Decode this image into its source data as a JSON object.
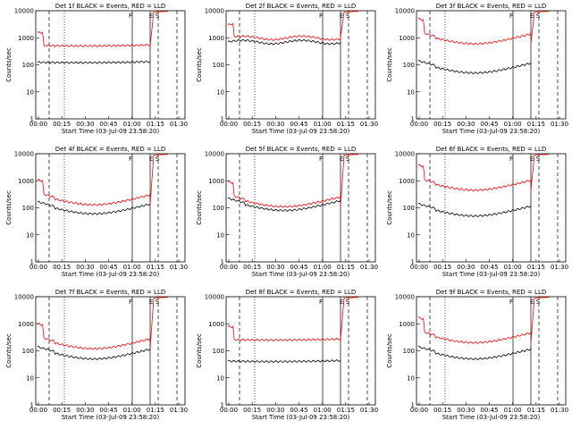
{
  "xlabel": "Start Time (03-Jul-09 23:58:20)",
  "ylabel": "Counts/sec",
  "xticks": [
    "00:00",
    "00:15",
    "00:30",
    "00:45",
    "01:00",
    "01:15",
    "01:30"
  ],
  "yticks": [
    "1",
    "10",
    "100",
    "1000",
    "10000"
  ],
  "colors": {
    "events": "#000000",
    "lld": "#ff0000",
    "axes": "#000000"
  },
  "panels": [
    {
      "title": "Det 1f BLACK = Events, RED = LLD",
      "markers": [
        "F",
        "E",
        "S"
      ],
      "events": 120,
      "lld": 500,
      "shape": "flat"
    },
    {
      "title": "Det 2f BLACK = Events, RED = LLD",
      "markers": [
        "F",
        "E",
        "S"
      ],
      "events": 700,
      "lld": 1000,
      "shape": "flat-high"
    },
    {
      "title": "Det 3f BLACK = Events, RED = LLD",
      "markers": [
        "F",
        "E",
        "S"
      ],
      "events": 50,
      "lld": 600,
      "shape": "dip"
    },
    {
      "title": "Det 4f BLACK = Events, RED = LLD",
      "markers": [
        "F",
        "E",
        "S"
      ],
      "events": 60,
      "lld": 130,
      "shape": "dip"
    },
    {
      "title": "Det 5f BLACK = Events, RED = LLD",
      "markers": [
        "F",
        "E",
        "S"
      ],
      "events": 80,
      "lld": 110,
      "shape": "dip"
    },
    {
      "title": "Det 6f BLACK = Events, RED = LLD",
      "markers": [
        "F",
        "E",
        "S"
      ],
      "events": 50,
      "lld": 450,
      "shape": "dip"
    },
    {
      "title": "Det 7f BLACK = Events, RED = LLD",
      "markers": [
        "F",
        "E",
        "S"
      ],
      "events": 50,
      "lld": 120,
      "shape": "dip"
    },
    {
      "title": "Det 8f BLACK = Events, RED = LLD",
      "markers": [
        "F",
        "E",
        "S"
      ],
      "events": 40,
      "lld": 250,
      "shape": "flat"
    },
    {
      "title": "Det 9f BLACK = Events, RED = LLD",
      "markers": [
        "F",
        "E",
        "S"
      ],
      "events": 50,
      "lld": 200,
      "shape": "dip"
    }
  ],
  "chart_data": {
    "type": "line",
    "xlabel": "Start Time (03-Jul-09 23:58:20)",
    "ylabel": "Counts/sec",
    "yscale": "log",
    "ylim": [
      1,
      10000
    ],
    "x_ticks": [
      "00:00",
      "00:15",
      "00:30",
      "00:45",
      "01:00",
      "01:15",
      "01:30"
    ],
    "series": [
      {
        "name": "Events",
        "color": "#000000"
      },
      {
        "name": "LLD",
        "color": "#ff0000"
      }
    ]
  }
}
